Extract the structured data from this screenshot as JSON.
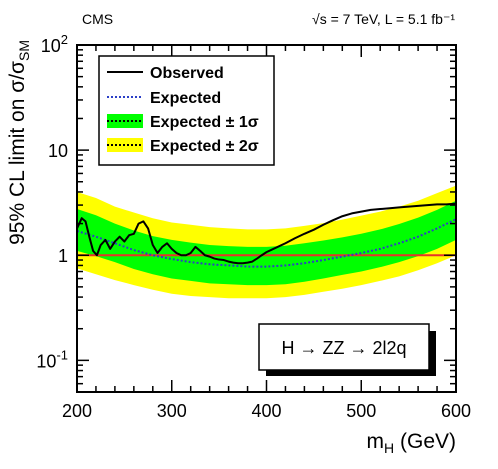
{
  "chart_data": {
    "type": "line",
    "title": "",
    "experiment": "CMS",
    "energy_lumi": "√s = 7 TeV, L = 5.1 fb⁻¹",
    "xlabel": "m_H (GeV)",
    "ylabel": "95% CL limit on σ/σ_SM",
    "xlim": [
      200,
      600
    ],
    "ylim": [
      0.05,
      100
    ],
    "yscale": "log",
    "x_ticks": [
      200,
      300,
      400,
      500,
      600
    ],
    "y_ticks": [
      {
        "value": 100,
        "base": "10",
        "exp": "2"
      },
      {
        "value": 10,
        "base": "10",
        "exp": ""
      },
      {
        "value": 1,
        "base": "1",
        "exp": ""
      },
      {
        "value": 0.1,
        "base": "10",
        "exp": "-1"
      }
    ],
    "channel_label": "H → ZZ → 2l2q",
    "reference_line": {
      "y": 1,
      "color": "#e8332a"
    },
    "legend_position": "top-left",
    "legend": [
      {
        "key": "observed",
        "label": "Observed"
      },
      {
        "key": "expected",
        "label": "Expected"
      },
      {
        "key": "band1",
        "label": "Expected ± 1σ"
      },
      {
        "key": "band2",
        "label": "Expected ± 2σ"
      }
    ],
    "colors": {
      "observed": "#000000",
      "expected": "#2b3fc7",
      "band1": "#00ff00",
      "band2": "#ffff00"
    },
    "series": [
      {
        "key": "observed",
        "x": [
          200,
          205,
          209,
          213,
          217,
          221,
          225,
          230,
          235,
          240,
          245,
          250,
          255,
          260,
          265,
          270,
          275,
          280,
          285,
          290,
          295,
          300,
          305,
          310,
          315,
          320,
          325,
          330,
          335,
          340,
          345,
          350,
          355,
          360,
          365,
          370,
          375,
          380,
          385,
          390,
          395,
          400,
          410,
          420,
          430,
          440,
          450,
          460,
          470,
          480,
          490,
          500,
          510,
          520,
          530,
          540,
          550,
          560,
          570,
          580,
          590,
          600
        ],
        "y": [
          1.8,
          2.25,
          2.1,
          1.5,
          1.1,
          1.0,
          1.25,
          1.4,
          1.15,
          1.35,
          1.5,
          1.35,
          1.55,
          1.6,
          2.0,
          2.1,
          1.8,
          1.25,
          1.05,
          1.2,
          1.3,
          1.15,
          1.05,
          1.0,
          1.0,
          1.05,
          1.2,
          1.1,
          1.0,
          0.97,
          0.93,
          0.91,
          0.9,
          0.87,
          0.85,
          0.84,
          0.84,
          0.85,
          0.87,
          0.93,
          1.0,
          1.07,
          1.18,
          1.3,
          1.45,
          1.6,
          1.75,
          1.95,
          2.15,
          2.35,
          2.5,
          2.6,
          2.7,
          2.75,
          2.8,
          2.85,
          2.9,
          2.95,
          3.0,
          3.05,
          3.05,
          3.1
        ]
      },
      {
        "key": "expected",
        "x": [
          200,
          220,
          240,
          260,
          280,
          300,
          320,
          340,
          360,
          380,
          400,
          420,
          440,
          460,
          480,
          500,
          520,
          540,
          560,
          580,
          600
        ],
        "y": [
          1.7,
          1.5,
          1.3,
          1.12,
          1.0,
          0.92,
          0.86,
          0.82,
          0.8,
          0.78,
          0.78,
          0.8,
          0.84,
          0.9,
          0.97,
          1.05,
          1.15,
          1.3,
          1.5,
          1.8,
          2.2
        ]
      },
      {
        "key": "band1",
        "x": [
          200,
          220,
          240,
          260,
          280,
          300,
          320,
          340,
          360,
          380,
          400,
          420,
          440,
          460,
          480,
          500,
          520,
          540,
          560,
          580,
          600
        ],
        "low": [
          1.1,
          0.98,
          0.86,
          0.74,
          0.66,
          0.6,
          0.57,
          0.54,
          0.53,
          0.52,
          0.52,
          0.53,
          0.56,
          0.6,
          0.65,
          0.7,
          0.77,
          0.86,
          0.98,
          1.15,
          1.4
        ],
        "high": [
          2.75,
          2.4,
          2.0,
          1.72,
          1.52,
          1.4,
          1.32,
          1.25,
          1.22,
          1.2,
          1.2,
          1.23,
          1.3,
          1.38,
          1.48,
          1.6,
          1.76,
          1.98,
          2.28,
          2.7,
          3.3
        ]
      },
      {
        "key": "band2",
        "x": [
          200,
          220,
          240,
          260,
          280,
          300,
          320,
          340,
          360,
          380,
          400,
          420,
          440,
          460,
          480,
          500,
          520,
          540,
          560,
          580,
          600
        ],
        "low": [
          0.75,
          0.66,
          0.58,
          0.52,
          0.47,
          0.43,
          0.41,
          0.4,
          0.39,
          0.39,
          0.39,
          0.4,
          0.42,
          0.45,
          0.48,
          0.52,
          0.57,
          0.63,
          0.72,
          0.84,
          1.0
        ],
        "high": [
          4.0,
          3.5,
          2.9,
          2.55,
          2.25,
          2.05,
          1.95,
          1.85,
          1.8,
          1.76,
          1.76,
          1.8,
          1.9,
          2.02,
          2.18,
          2.38,
          2.6,
          2.9,
          3.3,
          3.9,
          4.6
        ]
      }
    ]
  }
}
